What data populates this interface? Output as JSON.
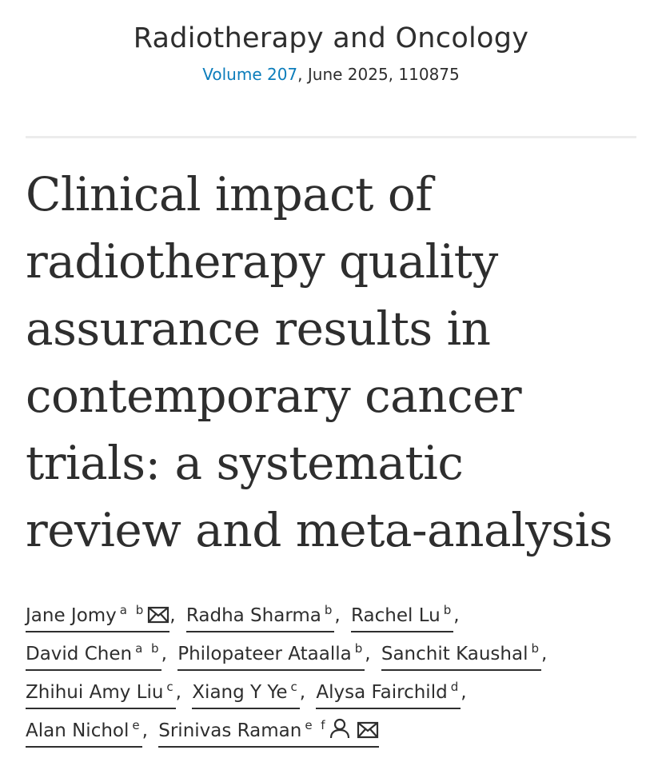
{
  "journal": {
    "name": "Radiotherapy and Oncology",
    "volume_link": "Volume 207",
    "issue_info": ", June 2025, 110875"
  },
  "article": {
    "title_lines": [
      "Clinical impact of",
      "radiotherapy quality",
      "assurance results in",
      "contemporary cancer",
      "trials: a systematic",
      "review and meta-analysis"
    ]
  },
  "authors": [
    {
      "name": "Jane Jomy",
      "aff": "a b",
      "icons": [
        "email-icon"
      ]
    },
    {
      "name": "Radha Sharma",
      "aff": "b",
      "icons": []
    },
    {
      "name": "Rachel Lu",
      "aff": "b",
      "icons": []
    },
    {
      "name": "David Chen",
      "aff": "a b",
      "icons": []
    },
    {
      "name": "Philopateer Ataalla",
      "aff": "b",
      "icons": []
    },
    {
      "name": "Sanchit Kaushal",
      "aff": "b",
      "icons": []
    },
    {
      "name": "Zhihui Amy Liu",
      "aff": "c",
      "icons": []
    },
    {
      "name": "Xiang Y Ye",
      "aff": "c",
      "icons": []
    },
    {
      "name": "Alysa Fairchild",
      "aff": "d",
      "icons": []
    },
    {
      "name": "Alan Nichol",
      "aff": "e",
      "icons": []
    },
    {
      "name": "Srinivas Raman",
      "aff": "e f",
      "icons": [
        "person-icon",
        "email-icon"
      ]
    }
  ],
  "separator": ",",
  "colors": {
    "text": "#2e2e2e",
    "link": "#0c7dbb",
    "divider": "#ececec"
  }
}
